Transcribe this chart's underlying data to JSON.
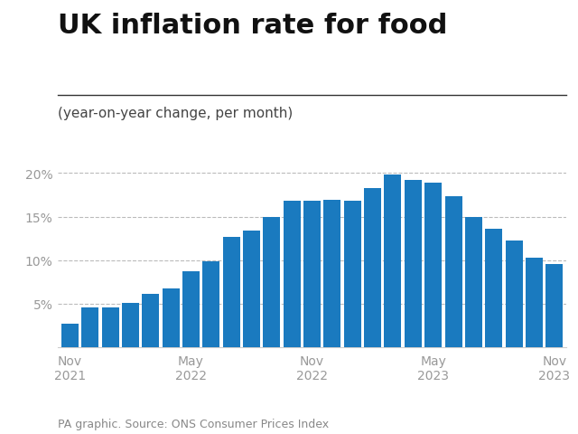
{
  "title": "UK inflation rate for food",
  "subtitle": "(year-on-year change, per month)",
  "footnote": "PA graphic. Source: ONS Consumer Prices Index",
  "bar_color": "#1a7abf",
  "background_color": "#ffffff",
  "values": [
    2.7,
    4.6,
    4.6,
    5.1,
    6.1,
    6.7,
    8.7,
    9.9,
    12.7,
    13.4,
    14.9,
    16.8,
    16.8,
    16.9,
    16.8,
    18.3,
    19.8,
    19.2,
    18.9,
    17.3,
    15.0,
    13.6,
    12.2,
    10.3,
    9.5
  ],
  "tick_positions": [
    0,
    6,
    12,
    18,
    24
  ],
  "tick_labels": [
    "Nov\n2021",
    "May\n2022",
    "Nov\n2022",
    "May\n2023",
    "Nov\n2023"
  ],
  "ylim": [
    0,
    21
  ],
  "yticks": [
    5,
    10,
    15,
    20
  ],
  "title_fontsize": 22,
  "subtitle_fontsize": 11,
  "footnote_fontsize": 9,
  "tick_fontsize": 10,
  "ytick_fontsize": 10
}
